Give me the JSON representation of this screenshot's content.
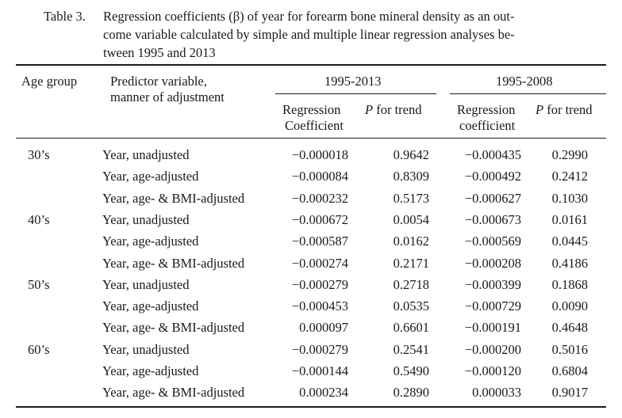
{
  "caption": {
    "label": "Table 3.",
    "lines": [
      "Regression coefficients (β) of year for forearm bone mineral density as an out-",
      "come variable calculated by simple and multiple linear regression analyses be-",
      "tween 1995 and 2013"
    ]
  },
  "header": {
    "age_group": "Age group",
    "predictor_line1": "Predictor variable,",
    "predictor_line2": "manner of adjustment",
    "period1": "1995-2013",
    "period2": "1995-2008",
    "reg1_line1": "Regression",
    "reg1_line2": "Coefficient",
    "reg2_line1": "Regression",
    "reg2_line2": "coefficient",
    "p_italic": "P",
    "p_rest": " for trend"
  },
  "rows": [
    {
      "age": "30’s",
      "predictor": "Year, unadjusted",
      "coef1": "−0.000018",
      "p1": "0.9642",
      "coef2": "−0.000435",
      "p2": "0.2990"
    },
    {
      "age": "",
      "predictor": "Year, age-adjusted",
      "coef1": "−0.000084",
      "p1": "0.8309",
      "coef2": "−0.000492",
      "p2": "0.2412"
    },
    {
      "age": "",
      "predictor": "Year, age- & BMI-adjusted",
      "coef1": "−0.000232",
      "p1": "0.5173",
      "coef2": "−0.000627",
      "p2": "0.1030"
    },
    {
      "age": "40’s",
      "predictor": "Year, unadjusted",
      "coef1": "−0.000672",
      "p1": "0.0054",
      "coef2": "−0.000673",
      "p2": "0.0161"
    },
    {
      "age": "",
      "predictor": "Year, age-adjusted",
      "coef1": "−0.000587",
      "p1": "0.0162",
      "coef2": "−0.000569",
      "p2": "0.0445"
    },
    {
      "age": "",
      "predictor": "Year, age- & BMI-adjusted",
      "coef1": "−0.000274",
      "p1": "0.2171",
      "coef2": "−0.000208",
      "p2": "0.4186"
    },
    {
      "age": "50’s",
      "predictor": "Year, unadjusted",
      "coef1": "−0.000279",
      "p1": "0.2718",
      "coef2": "−0.000399",
      "p2": "0.1868"
    },
    {
      "age": "",
      "predictor": "Year, age-adjusted",
      "coef1": "−0.000453",
      "p1": "0.0535",
      "coef2": "−0.000729",
      "p2": "0.0090"
    },
    {
      "age": "",
      "predictor": "Year, age- & BMI-adjusted",
      "coef1": "0.000097",
      "p1": "0.6601",
      "coef2": "−0.000191",
      "p2": "0.4648"
    },
    {
      "age": "60’s",
      "predictor": "Year, unadjusted",
      "coef1": "−0.000279",
      "p1": "0.2541",
      "coef2": "−0.000200",
      "p2": "0.5016"
    },
    {
      "age": "",
      "predictor": "Year, age-adjusted",
      "coef1": "−0.000144",
      "p1": "0.5490",
      "coef2": "−0.000120",
      "p2": "0.6804"
    },
    {
      "age": "",
      "predictor": "Year, age- & BMI-adjusted",
      "coef1": "0.000234",
      "p1": "0.2890",
      "coef2": "0.000033",
      "p2": "0.9017"
    }
  ]
}
